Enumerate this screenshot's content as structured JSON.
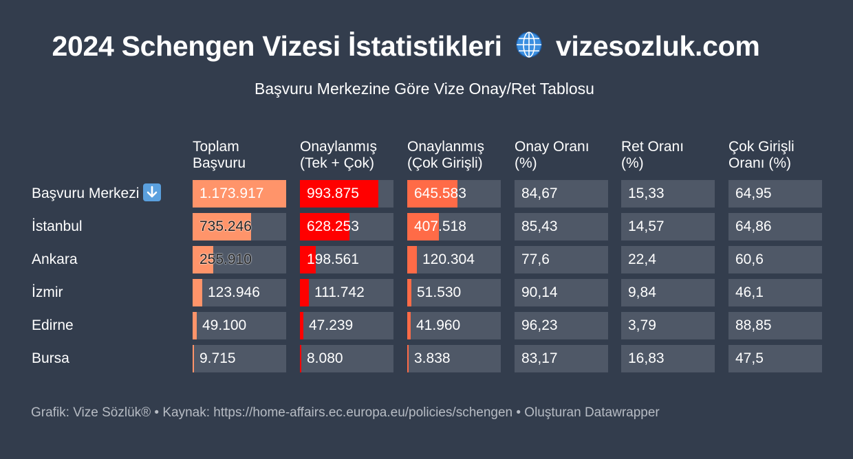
{
  "title": "2024 Schengen Vizesi İstatistikleri",
  "title_suffix": "vizesozluk.com",
  "subtitle": "Başvuru Merkezine Göre Vize Onay/Ret Tablosu",
  "footer": "Grafik: Vize Sözlük® • Kaynak: https://home-affairs.ec.europa.eu/policies/schengen • Oluşturan Datawrapper",
  "colors": {
    "background": "#333d4d",
    "cell": "#4f5867",
    "toplam": "#ff946a",
    "onaylanmis": "#ff0000",
    "cok": "#ff6b47"
  },
  "icons": {
    "title": "globe-icon",
    "header": "arrow-down-icon"
  },
  "chart_data": {
    "type": "table",
    "row_header": "Başvuru Merkezi",
    "columns": [
      {
        "key": "toplam",
        "label": [
          "Toplam",
          "Başvuru"
        ],
        "bar": true,
        "max": 1173917
      },
      {
        "key": "onay",
        "label": [
          "Onaylanmış",
          "(Tek + Çok)"
        ],
        "bar": true,
        "max": 993875
      },
      {
        "key": "cok",
        "label": [
          "Onaylanmış",
          "(Çok Girişli)"
        ],
        "bar": true,
        "max": 645583
      },
      {
        "key": "onay_orani",
        "label": [
          "Onay Oranı",
          "(%)"
        ],
        "bar": false
      },
      {
        "key": "ret_orani",
        "label": [
          "Ret Oranı",
          "(%)"
        ],
        "bar": false
      },
      {
        "key": "cok_orani",
        "label": [
          "Çok Girişli",
          "Oranı (%)"
        ],
        "bar": false
      }
    ],
    "rows": [
      {
        "name": "",
        "is_total": true,
        "toplam": 1173917,
        "onay": 993875,
        "cok": 645583,
        "onay_orani": 84.67,
        "ret_orani": 15.33,
        "cok_orani": 64.95,
        "labels": [
          "1.173.917",
          "993.875",
          "645.583",
          "84,67",
          "15,33",
          "64,95"
        ]
      },
      {
        "name": "İstanbul",
        "toplam": 735246,
        "onay": 628253,
        "cok": 407518,
        "onay_orani": 85.43,
        "ret_orani": 14.57,
        "cok_orani": 64.86,
        "labels": [
          "735.246",
          "628.253",
          "407.518",
          "85,43",
          "14,57",
          "64,86"
        ]
      },
      {
        "name": "Ankara",
        "toplam": 255910,
        "onay": 198561,
        "cok": 120304,
        "onay_orani": 77.6,
        "ret_orani": 22.4,
        "cok_orani": 60.6,
        "labels": [
          "255.910",
          "198.561",
          "120.304",
          "77,6",
          "22,4",
          "60,6"
        ]
      },
      {
        "name": "İzmir",
        "toplam": 123946,
        "onay": 111742,
        "cok": 51530,
        "onay_orani": 90.14,
        "ret_orani": 9.84,
        "cok_orani": 46.1,
        "labels": [
          "123.946",
          "111.742",
          "51.530",
          "90,14",
          "9,84",
          "46,1"
        ]
      },
      {
        "name": "Edirne",
        "toplam": 49100,
        "onay": 47239,
        "cok": 41960,
        "onay_orani": 96.23,
        "ret_orani": 3.79,
        "cok_orani": 88.85,
        "labels": [
          "49.100",
          "47.239",
          "41.960",
          "96,23",
          "3,79",
          "88,85"
        ]
      },
      {
        "name": "Bursa",
        "toplam": 9715,
        "onay": 8080,
        "cok": 3838,
        "onay_orani": 83.17,
        "ret_orani": 16.83,
        "cok_orani": 47.5,
        "labels": [
          "9.715",
          "8.080",
          "3.838",
          "83,17",
          "16,83",
          "47,5"
        ]
      }
    ]
  }
}
